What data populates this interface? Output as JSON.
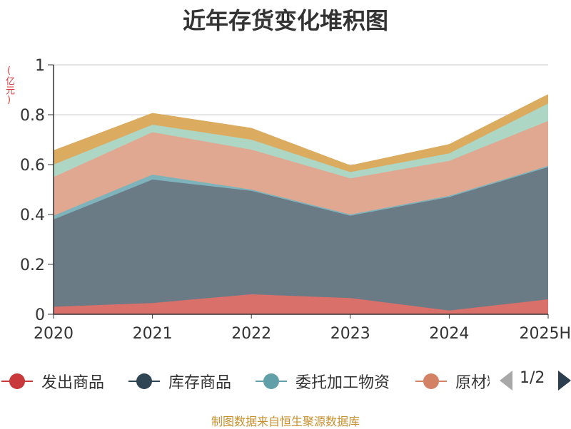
{
  "chart_data": {
    "type": "area",
    "stacked": true,
    "title": "近年存货变化堆积图",
    "ylabel": "(亿元)",
    "categories": [
      "2020",
      "2021",
      "2022",
      "2023",
      "2024",
      "2025H"
    ],
    "ylim": [
      0,
      1
    ],
    "yticks": [
      "0",
      "0.2",
      "0.4",
      "0.6",
      "0.8",
      "1"
    ],
    "grid": true,
    "series": [
      {
        "name": "发出商品",
        "color": "#d9706a",
        "values": [
          0.03,
          0.045,
          0.08,
          0.065,
          0.015,
          0.06
        ]
      },
      {
        "name": "库存商品",
        "color": "#6b7b86",
        "values": [
          0.35,
          0.495,
          0.415,
          0.33,
          0.455,
          0.53
        ]
      },
      {
        "name": "委托加工物资",
        "color": "#7fb3bb",
        "values": [
          0.015,
          0.02,
          0.005,
          0.005,
          0.005,
          0.005
        ]
      },
      {
        "name": "原材料",
        "color": "#e0a890",
        "values": [
          0.155,
          0.17,
          0.16,
          0.145,
          0.14,
          0.18
        ]
      },
      {
        "name": "",
        "color": "#aed6c4",
        "values": [
          0.05,
          0.03,
          0.04,
          0.025,
          0.03,
          0.07
        ]
      },
      {
        "name": "",
        "color": "#dbab5f",
        "values": [
          0.055,
          0.045,
          0.045,
          0.025,
          0.035,
          0.035
        ]
      }
    ],
    "legend": {
      "placement": "bottom",
      "items": [
        {
          "label": "发出商品",
          "color": "#c9383a"
        },
        {
          "label": "库存商品",
          "color": "#2f4554"
        },
        {
          "label": "委托加工物资",
          "color": "#61a0a8"
        },
        {
          "label": "原材料",
          "color": "#d48265"
        }
      ],
      "page": "1/2"
    }
  },
  "source_text": "制图数据来自恒生聚源数据库"
}
